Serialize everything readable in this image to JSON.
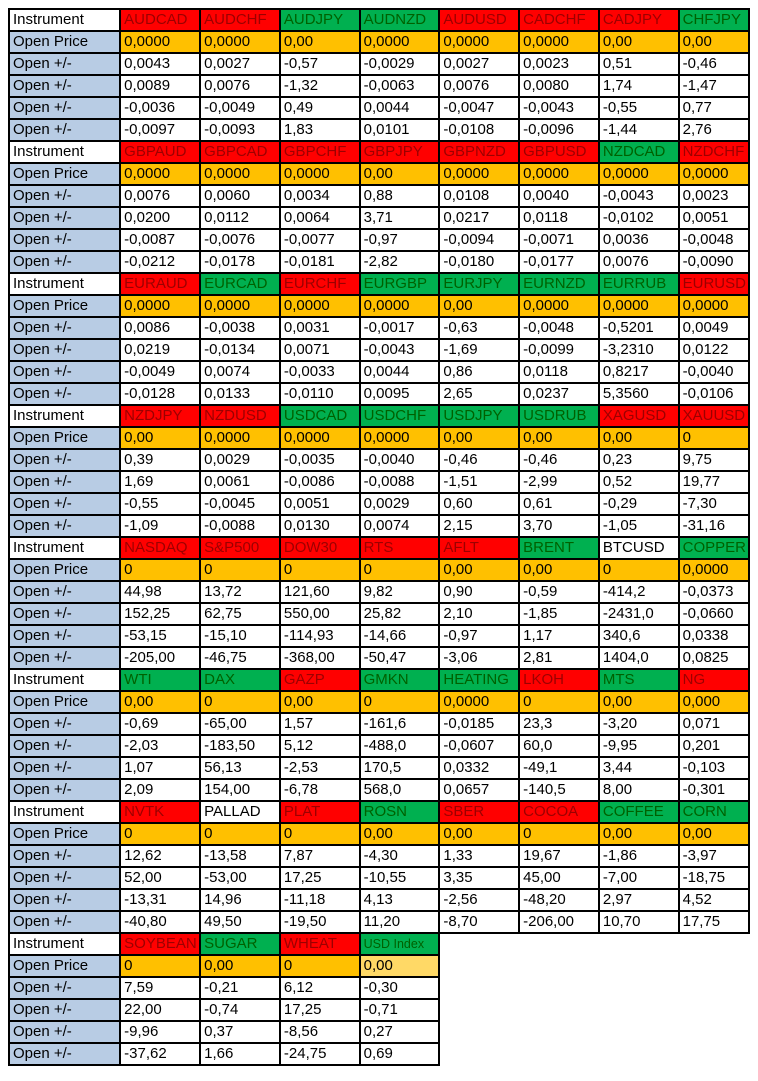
{
  "table": {
    "columns_per_block": 8,
    "row_labels": {
      "instrument": "Instrument",
      "open_price": "Open Price",
      "open_change": "Open +/-"
    },
    "colors": {
      "instrument_up_bg": "#00b050",
      "instrument_up_text": "#006100",
      "instrument_down_bg": "#ff0000",
      "instrument_down_text": "#9c0000",
      "instrument_neutral_bg": "#ffffff",
      "open_price_bg": "#ffc000",
      "open_price_light_bg": "#ffd966",
      "label_column_bg": "#b8cce4",
      "grid_border": "#000000"
    },
    "blocks": [
      {
        "instruments": [
          {
            "name": "AUDCAD",
            "color": "red"
          },
          {
            "name": "AUDCHF",
            "color": "red"
          },
          {
            "name": "AUDJPY",
            "color": "green"
          },
          {
            "name": "AUDNZD",
            "color": "green"
          },
          {
            "name": "AUDUSD",
            "color": "red"
          },
          {
            "name": "CADCHF",
            "color": "red"
          },
          {
            "name": "CADJPY",
            "color": "red"
          },
          {
            "name": "CHFJPY",
            "color": "green"
          }
        ],
        "open_prices": [
          "0,0000",
          "0,0000",
          "0,00",
          "0,0000",
          "0,0000",
          "0,0000",
          "0,00",
          "0,00"
        ],
        "changes": [
          [
            "0,0043",
            "0,0027",
            "-0,57",
            "-0,0029",
            "0,0027",
            "0,0023",
            "0,51",
            "-0,46"
          ],
          [
            "0,0089",
            "0,0076",
            "-1,32",
            "-0,0063",
            "0,0076",
            "0,0080",
            "1,74",
            "-1,47"
          ],
          [
            "-0,0036",
            "-0,0049",
            "0,49",
            "0,0044",
            "-0,0047",
            "-0,0043",
            "-0,55",
            "0,77"
          ],
          [
            "-0,0097",
            "-0,0093",
            "1,83",
            "0,0101",
            "-0,0108",
            "-0,0096",
            "-1,44",
            "2,76"
          ]
        ]
      },
      {
        "instruments": [
          {
            "name": "GBPAUD",
            "color": "red"
          },
          {
            "name": "GBPCAD",
            "color": "red"
          },
          {
            "name": "GBPCHF",
            "color": "red"
          },
          {
            "name": "GBPJPY",
            "color": "red"
          },
          {
            "name": "GBPNZD",
            "color": "red"
          },
          {
            "name": "GBPUSD",
            "color": "red"
          },
          {
            "name": "NZDCAD",
            "color": "green"
          },
          {
            "name": "NZDCHF",
            "color": "red"
          }
        ],
        "open_prices": [
          "0,0000",
          "0,0000",
          "0,0000",
          "0,00",
          "0,0000",
          "0,0000",
          "0,0000",
          "0,0000"
        ],
        "changes": [
          [
            "0,0076",
            "0,0060",
            "0,0034",
            "0,88",
            "0,0108",
            "0,0040",
            "-0,0043",
            "0,0023"
          ],
          [
            "0,0200",
            "0,0112",
            "0,0064",
            "3,71",
            "0,0217",
            "0,0118",
            "-0,0102",
            "0,0051"
          ],
          [
            "-0,0087",
            "-0,0076",
            "-0,0077",
            "-0,97",
            "-0,0094",
            "-0,0071",
            "0,0036",
            "-0,0048"
          ],
          [
            "-0,0212",
            "-0,0178",
            "-0,0181",
            "-2,82",
            "-0,0180",
            "-0,0177",
            "0,0076",
            "-0,0090"
          ]
        ]
      },
      {
        "instruments": [
          {
            "name": "EURAUD",
            "color": "red"
          },
          {
            "name": "EURCAD",
            "color": "green"
          },
          {
            "name": "EURCHF",
            "color": "red"
          },
          {
            "name": "EURGBP",
            "color": "green"
          },
          {
            "name": "EURJPY",
            "color": "green"
          },
          {
            "name": "EURNZD",
            "color": "green"
          },
          {
            "name": "EURRUB",
            "color": "green"
          },
          {
            "name": "EURUSD",
            "color": "red"
          }
        ],
        "open_prices": [
          "0,0000",
          "0,0000",
          "0,0000",
          "0,0000",
          "0,00",
          "0,0000",
          "0,0000",
          "0,0000"
        ],
        "changes": [
          [
            "0,0086",
            "-0,0038",
            "0,0031",
            "-0,0017",
            "-0,63",
            "-0,0048",
            "-0,5201",
            "0,0049"
          ],
          [
            "0,0219",
            "-0,0134",
            "0,0071",
            "-0,0043",
            "-1,69",
            "-0,0099",
            "-3,2310",
            "0,0122"
          ],
          [
            "-0,0049",
            "0,0074",
            "-0,0033",
            "0,0044",
            "0,86",
            "0,0118",
            "0,8217",
            "-0,0040"
          ],
          [
            "-0,0128",
            "0,0133",
            "-0,0110",
            "0,0095",
            "2,65",
            "0,0237",
            "5,3560",
            "-0,0106"
          ]
        ]
      },
      {
        "instruments": [
          {
            "name": "NZDJPY",
            "color": "red"
          },
          {
            "name": "NZDUSD",
            "color": "red"
          },
          {
            "name": "USDCAD",
            "color": "green"
          },
          {
            "name": "USDCHF",
            "color": "green"
          },
          {
            "name": "USDJPY",
            "color": "green"
          },
          {
            "name": "USDRUB",
            "color": "green"
          },
          {
            "name": "XAGUSD",
            "color": "red"
          },
          {
            "name": "XAUUSD",
            "color": "red"
          }
        ],
        "open_prices": [
          "0,00",
          "0,0000",
          "0,0000",
          "0,0000",
          "0,00",
          "0,00",
          "0,00",
          "0"
        ],
        "changes": [
          [
            "0,39",
            "0,0029",
            "-0,0035",
            "-0,0040",
            "-0,46",
            "-0,46",
            "0,23",
            "9,75"
          ],
          [
            "1,69",
            "0,0061",
            "-0,0086",
            "-0,0088",
            "-1,51",
            "-2,99",
            "0,52",
            "19,77"
          ],
          [
            "-0,55",
            "-0,0045",
            "0,0051",
            "0,0029",
            "0,60",
            "0,61",
            "-0,29",
            "-7,30"
          ],
          [
            "-1,09",
            "-0,0088",
            "0,0130",
            "0,0074",
            "2,15",
            "3,70",
            "-1,05",
            "-31,16"
          ]
        ]
      },
      {
        "instruments": [
          {
            "name": "NASDAQ",
            "color": "red"
          },
          {
            "name": "S&P500",
            "color": "red"
          },
          {
            "name": "DOW30",
            "color": "red"
          },
          {
            "name": "RTS",
            "color": "red"
          },
          {
            "name": "AFLT",
            "color": "red"
          },
          {
            "name": "BRENT",
            "color": "green"
          },
          {
            "name": "BTCUSD",
            "color": "white"
          },
          {
            "name": "COPPER",
            "color": "green"
          }
        ],
        "open_prices": [
          "0",
          "0",
          "0",
          "0",
          "0,00",
          "0,00",
          "0",
          "0,0000"
        ],
        "changes": [
          [
            "44,98",
            "13,72",
            "121,60",
            "9,82",
            "0,90",
            "-0,59",
            "-414,2",
            "-0,0373"
          ],
          [
            "152,25",
            "62,75",
            "550,00",
            "25,82",
            "2,10",
            "-1,85",
            "-2431,0",
            "-0,0660"
          ],
          [
            "-53,15",
            "-15,10",
            "-114,93",
            "-14,66",
            "-0,97",
            "1,17",
            "340,6",
            "0,0338"
          ],
          [
            "-205,00",
            "-46,75",
            "-368,00",
            "-50,47",
            "-3,06",
            "2,81",
            "1404,0",
            "0,0825"
          ]
        ]
      },
      {
        "instruments": [
          {
            "name": "WTI",
            "color": "green"
          },
          {
            "name": "DAX",
            "color": "green"
          },
          {
            "name": "GAZP",
            "color": "red"
          },
          {
            "name": "GMKN",
            "color": "green"
          },
          {
            "name": "HEATING",
            "color": "green"
          },
          {
            "name": "LKOH",
            "color": "red"
          },
          {
            "name": "MTS",
            "color": "green"
          },
          {
            "name": "NG",
            "color": "red"
          }
        ],
        "open_prices": [
          "0,00",
          "0",
          "0,00",
          "0",
          "0,0000",
          "0",
          "0,00",
          "0,000"
        ],
        "changes": [
          [
            "-0,69",
            "-65,00",
            "1,57",
            "-161,6",
            "-0,0185",
            "23,3",
            "-3,20",
            "0,071"
          ],
          [
            "-2,03",
            "-183,50",
            "5,12",
            "-488,0",
            "-0,0607",
            "60,0",
            "-9,95",
            "0,201"
          ],
          [
            "1,07",
            "56,13",
            "-2,53",
            "170,5",
            "0,0332",
            "-49,1",
            "3,44",
            "-0,103"
          ],
          [
            "2,09",
            "154,00",
            "-6,78",
            "568,0",
            "0,0657",
            "-140,5",
            "8,00",
            "-0,301"
          ]
        ]
      },
      {
        "instruments": [
          {
            "name": "NVTK",
            "color": "red"
          },
          {
            "name": "PALLAD",
            "color": "white"
          },
          {
            "name": "PLAT",
            "color": "red"
          },
          {
            "name": "ROSN",
            "color": "green"
          },
          {
            "name": "SBER",
            "color": "red"
          },
          {
            "name": "COCOA",
            "color": "red"
          },
          {
            "name": "COFFEE",
            "color": "green"
          },
          {
            "name": "CORN",
            "color": "green"
          }
        ],
        "open_prices": [
          "0",
          "0",
          "0",
          "0,00",
          "0,00",
          "0",
          "0,00",
          "0,00"
        ],
        "changes": [
          [
            "12,62",
            "-13,58",
            "7,87",
            "-4,30",
            "1,33",
            "19,67",
            "-1,86",
            "-3,97"
          ],
          [
            "52,00",
            "-53,00",
            "17,25",
            "-10,55",
            "3,35",
            "45,00",
            "-7,00",
            "-18,75"
          ],
          [
            "-13,31",
            "14,96",
            "-11,18",
            "4,13",
            "-2,56",
            "-48,20",
            "2,97",
            "4,52"
          ],
          [
            "-40,80",
            "49,50",
            "-19,50",
            "11,20",
            "-8,70",
            "-206,00",
            "10,70",
            "17,75"
          ]
        ]
      },
      {
        "instruments": [
          {
            "name": "SOYBEAN",
            "color": "red"
          },
          {
            "name": "SUGAR",
            "color": "green"
          },
          {
            "name": "WHEAT",
            "color": "red"
          },
          {
            "name": "USD Index",
            "color": "green",
            "small": true,
            "price_light": true
          }
        ],
        "open_prices": [
          "0",
          "0,00",
          "0",
          "0,00"
        ],
        "changes": [
          [
            "7,59",
            "-0,21",
            "6,12",
            "-0,30"
          ],
          [
            "22,00",
            "-0,74",
            "17,25",
            "-0,71"
          ],
          [
            "-9,96",
            "0,37",
            "-8,56",
            "0,27"
          ],
          [
            "-37,62",
            "1,66",
            "-24,75",
            "0,69"
          ]
        ]
      }
    ]
  }
}
